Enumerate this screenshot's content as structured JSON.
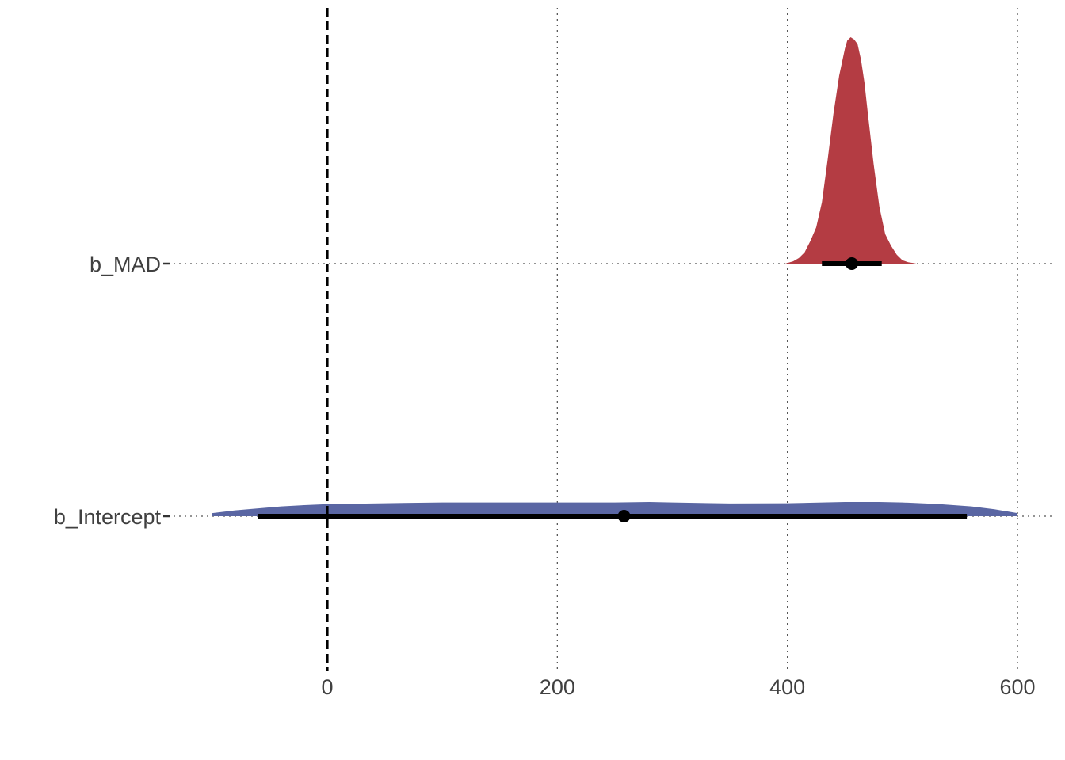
{
  "chart_data": {
    "type": "area",
    "title": "",
    "xlabel": "",
    "ylabel": "",
    "xlim": [
      -110,
      630
    ],
    "x_ticks": [
      0,
      200,
      400,
      600
    ],
    "x_tick_labels": [
      "0",
      "200",
      "400",
      "600"
    ],
    "reference_line": {
      "x": 0,
      "style": "dashed",
      "color": "#000000"
    },
    "grid": {
      "major": true,
      "style": "dotted",
      "color": "#555555"
    },
    "legend": "none",
    "parameters": [
      {
        "name": "b_MAD",
        "color": "#b43c43",
        "median": 456,
        "interval": [
          430,
          482
        ],
        "density": {
          "x": [
            398,
            405,
            410,
            415,
            420,
            425,
            430,
            435,
            440,
            445,
            450,
            452,
            455,
            458,
            461,
            464,
            467,
            470,
            475,
            480,
            485,
            490,
            495,
            500,
            505,
            510,
            512
          ],
          "y": [
            0,
            0.01,
            0.025,
            0.05,
            0.1,
            0.16,
            0.27,
            0.46,
            0.66,
            0.83,
            0.95,
            0.985,
            1.0,
            0.99,
            0.97,
            0.9,
            0.8,
            0.66,
            0.44,
            0.25,
            0.13,
            0.08,
            0.04,
            0.015,
            0.006,
            0.002,
            0
          ]
        }
      },
      {
        "name": "b_Intercept",
        "color": "#5a66a3",
        "median": 258,
        "interval": [
          -60,
          556
        ],
        "density": {
          "x": [
            -100,
            -80,
            -60,
            -40,
            -20,
            0,
            50,
            100,
            150,
            200,
            250,
            280,
            300,
            350,
            400,
            450,
            480,
            500,
            530,
            560,
            580,
            600
          ],
          "y": [
            0.0025,
            0.0048,
            0.0064,
            0.008,
            0.009,
            0.0098,
            0.0106,
            0.0112,
            0.0112,
            0.0112,
            0.0112,
            0.0116,
            0.0112,
            0.0104,
            0.0106,
            0.0116,
            0.0116,
            0.0112,
            0.01,
            0.008,
            0.0056,
            0.0025
          ]
        }
      }
    ]
  }
}
